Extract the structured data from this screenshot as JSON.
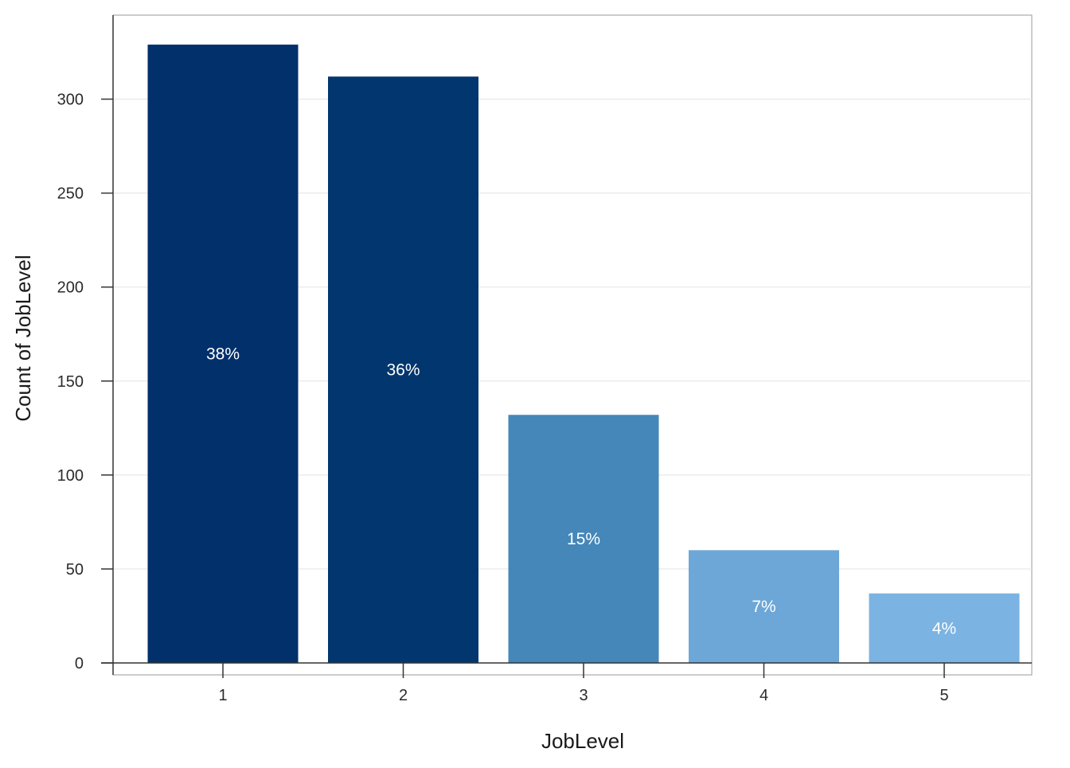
{
  "chart_data": {
    "type": "bar",
    "title": "",
    "xlabel": "JobLevel",
    "ylabel": "Count of JobLevel",
    "categories": [
      "1",
      "2",
      "3",
      "4",
      "5"
    ],
    "values": [
      329,
      312,
      132,
      60,
      37
    ],
    "data_labels": [
      "38%",
      "36%",
      "15%",
      "7%",
      "4%"
    ],
    "bar_colors": [
      "#02306B",
      "#02366E",
      "#4587B9",
      "#6DA7D7",
      "#7BB3E3"
    ],
    "ylim": [
      -4,
      345
    ],
    "yticks": [
      0,
      50,
      100,
      150,
      200,
      250,
      300
    ],
    "grid": true,
    "legend": "none"
  },
  "colors": {
    "grid": "#e3e3e3",
    "panel_border": "#9a9a9a",
    "axis_line": "#333333"
  }
}
